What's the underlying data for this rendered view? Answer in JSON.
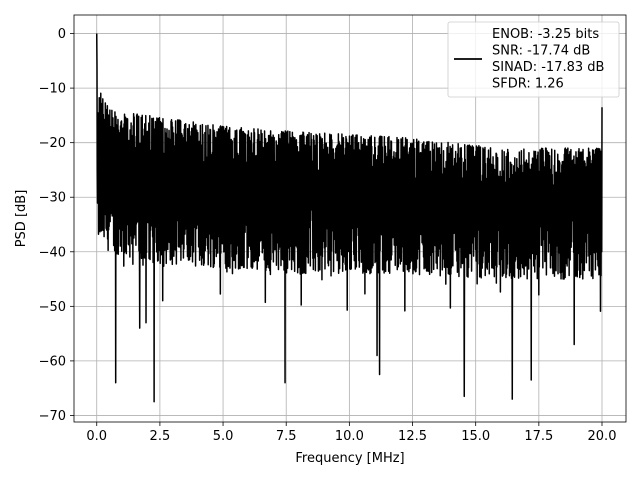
{
  "chart_data": {
    "type": "line",
    "title": "",
    "xlabel": "Frequency [MHz]",
    "ylabel": "PSD [dB]",
    "xlim": [
      -0.9,
      20.95
    ],
    "ylim": [
      -71.2,
      3.4
    ],
    "xticks": [
      0.0,
      2.5,
      5.0,
      7.5,
      10.0,
      12.5,
      15.0,
      17.5,
      20.0
    ],
    "xtick_labels": [
      "0.0",
      "2.5",
      "5.0",
      "7.5",
      "10.0",
      "12.5",
      "15.0",
      "17.5",
      "20.0"
    ],
    "yticks": [
      0,
      -10,
      -20,
      -30,
      -40,
      -50,
      -60,
      -70
    ],
    "ytick_labels": [
      "0",
      "−10",
      "−20",
      "−30",
      "−40",
      "−50",
      "−60",
      "−70"
    ],
    "grid": true,
    "legend_position": "top-right",
    "series": [
      {
        "legend_lines": [
          "ENOB: -3.25 bits",
          "SNR: -17.74 dB",
          "SINAD: -17.83 dB",
          "SFDR: 1.26"
        ],
        "color": "#000000",
        "x_range": [
          0,
          20
        ],
        "num_points": 2000,
        "peak": {
          "x": 0.0,
          "y": 0
        },
        "upper_envelope": {
          "x": [
            0.1,
            0.5,
            2.0,
            5.0,
            8.0,
            12.0,
            16.0,
            20.0
          ],
          "y": [
            -10,
            -14,
            -15,
            -17,
            -18,
            -19,
            -21,
            -21
          ]
        },
        "lower_envelope": {
          "x": [
            0.1,
            0.5,
            2.0,
            5.0,
            8.0,
            12.0,
            16.0,
            20.0
          ],
          "y": [
            -38,
            -40,
            -42,
            -43,
            -44,
            -44,
            -45,
            -45
          ]
        },
        "deep_nulls": [
          {
            "x": 0.75,
            "y": -64
          },
          {
            "x": 1.7,
            "y": -54
          },
          {
            "x": 1.95,
            "y": -53
          },
          {
            "x": 2.27,
            "y": -67.5
          },
          {
            "x": 7.45,
            "y": -64
          },
          {
            "x": 11.2,
            "y": -62.5
          },
          {
            "x": 11.1,
            "y": -59
          },
          {
            "x": 14.55,
            "y": -66.5
          },
          {
            "x": 16.45,
            "y": -67
          },
          {
            "x": 17.2,
            "y": -63.5
          },
          {
            "x": 18.9,
            "y": -57
          }
        ],
        "end_spike": {
          "x": 20.0,
          "y": -13.5
        }
      }
    ]
  }
}
